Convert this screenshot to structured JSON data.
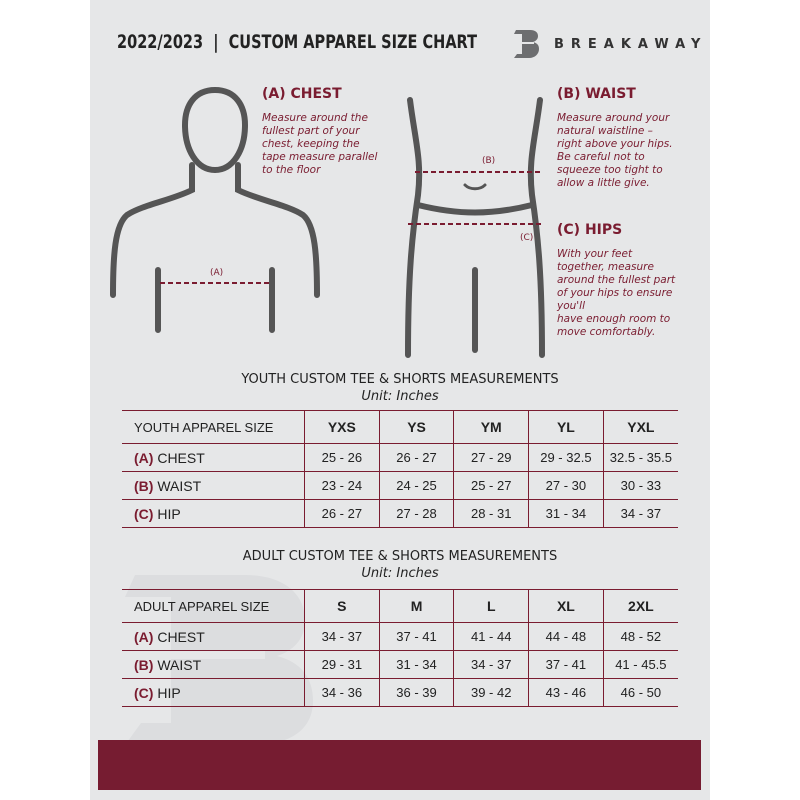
{
  "header": {
    "title": "2022/2023  |  CUSTOM APPAREL SIZE CHART",
    "brand": "BREAKAWAY"
  },
  "colors": {
    "accent": "#761c31",
    "background": "#e6e7e8"
  },
  "guides": {
    "chest": {
      "heading": "(A) CHEST",
      "marker": "(A)",
      "text": "Measure around the\nfullest part of your\nchest, keeping the\ntape measure parallel\nto the floor"
    },
    "waist": {
      "heading": "(B) WAIST",
      "marker": "(B)",
      "text": "Measure around your\nnatural waistline –\nright above your hips.\nBe careful not to\nsqueeze too tight to\nallow a little give."
    },
    "hips": {
      "heading": "(C) HIPS",
      "marker": "(C)",
      "text": "With your feet\ntogether, measure\naround the fullest part\nof your hips to ensure\nyou'll\nhave enough room to\nmove comfortably."
    }
  },
  "youth": {
    "title": "YOUTH CUSTOM TEE & SHORTS MEASUREMENTS",
    "unit": "Unit: Inches",
    "size_label": "YOUTH APPAREL SIZE",
    "sizes": [
      "YXS",
      "YS",
      "YM",
      "YL",
      "YXL"
    ],
    "rows": [
      {
        "code": "(A)",
        "label": "CHEST",
        "values": [
          "25 - 26",
          "26 - 27",
          "27 - 29",
          "29 - 32.5",
          "32.5 - 35.5"
        ]
      },
      {
        "code": "(B)",
        "label": "WAIST",
        "values": [
          "23 - 24",
          "24 - 25",
          "25 - 27",
          "27 - 30",
          "30 - 33"
        ]
      },
      {
        "code": "(C)",
        "label": "HIP",
        "values": [
          "26 - 27",
          "27 - 28",
          "28 - 31",
          "31 - 34",
          "34 - 37"
        ]
      }
    ]
  },
  "adult": {
    "title": "ADULT CUSTOM TEE & SHORTS MEASUREMENTS",
    "unit": "Unit: Inches",
    "size_label": "ADULT APPAREL SIZE",
    "sizes": [
      "S",
      "M",
      "L",
      "XL",
      "2XL"
    ],
    "rows": [
      {
        "code": "(A)",
        "label": "CHEST",
        "values": [
          "34 - 37",
          "37 - 41",
          "41 - 44",
          "44 - 48",
          "48 - 52"
        ]
      },
      {
        "code": "(B)",
        "label": "WAIST",
        "values": [
          "29 - 31",
          "31 - 34",
          "34 - 37",
          "37 - 41",
          "41 - 45.5"
        ]
      },
      {
        "code": "(C)",
        "label": "HIP",
        "values": [
          "34 - 36",
          "36 - 39",
          "39 - 42",
          "43 - 46",
          "46 - 50"
        ]
      }
    ]
  }
}
